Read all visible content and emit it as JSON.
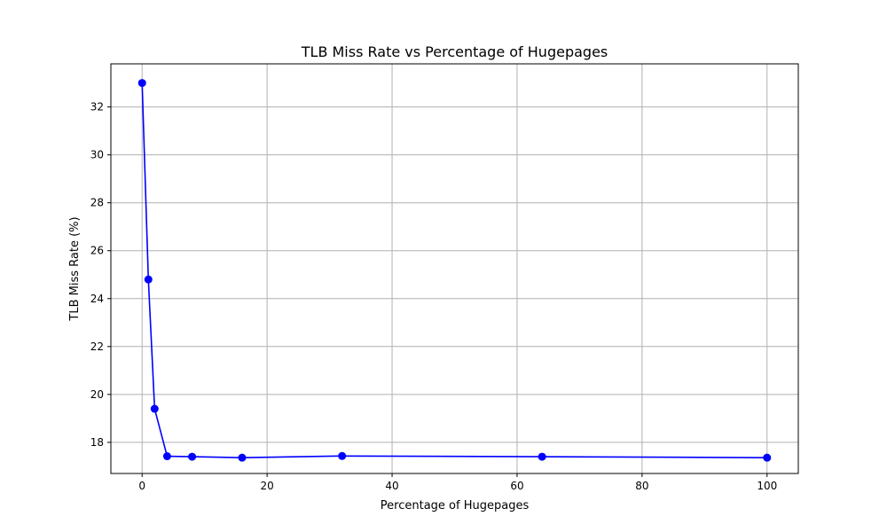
{
  "chart_data": {
    "type": "line",
    "title": "TLB Miss Rate vs Percentage of Hugepages",
    "xlabel": "Percentage of Hugepages",
    "ylabel": "TLB Miss Rate (%)",
    "xlim": [
      -5,
      105
    ],
    "ylim": [
      16.7,
      33.8
    ],
    "xticks": [
      0,
      20,
      40,
      60,
      80,
      100
    ],
    "yticks": [
      18,
      20,
      22,
      24,
      26,
      28,
      30,
      32
    ],
    "grid": true,
    "series": [
      {
        "x": [
          0,
          1,
          2,
          4,
          8,
          16,
          32,
          64,
          100
        ],
        "y": [
          33.0,
          24.8,
          19.4,
          17.42,
          17.4,
          17.36,
          17.43,
          17.4,
          17.36
        ],
        "color": "#0000ff",
        "marker": "circle"
      }
    ]
  }
}
